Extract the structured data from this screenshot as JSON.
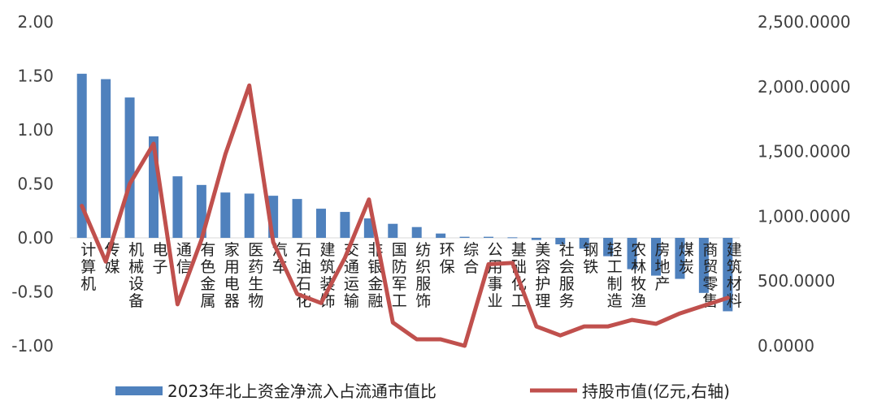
{
  "chart_data": {
    "type": "bar+line",
    "categories": [
      "计算机",
      "传媒",
      "机械设备",
      "电子",
      "通信",
      "有色金属",
      "家用电器",
      "医药生物",
      "汽车",
      "石油石化",
      "建筑装饰",
      "交通运输",
      "非银金融",
      "国防军工",
      "纺织服饰",
      "环保",
      "综合",
      "公用事业",
      "基础化工",
      "美容护理",
      "社会服务",
      "钢铁",
      "轻工制造",
      "农林牧渔",
      "房地产",
      "煤炭",
      "商贸零售",
      "建筑材料"
    ],
    "series": [
      {
        "name": "2023年北上资金净流入占流通市值比",
        "type": "bar",
        "axis": "left",
        "color": "#4F81BD",
        "values": [
          1.52,
          1.47,
          1.3,
          0.94,
          0.57,
          0.49,
          0.42,
          0.41,
          0.39,
          0.36,
          0.27,
          0.24,
          0.18,
          0.13,
          0.1,
          0.04,
          0.01,
          0.01,
          0.005,
          -0.02,
          -0.06,
          -0.1,
          -0.17,
          -0.29,
          -0.35,
          -0.38,
          -0.51,
          -0.68
        ]
      },
      {
        "name": "持股市值(亿元,右轴)",
        "type": "line",
        "axis": "right",
        "color": "#C0504D",
        "values": [
          1080,
          650,
          1250,
          1560,
          320,
          820,
          1480,
          2010,
          800,
          400,
          330,
          680,
          1130,
          180,
          50,
          50,
          0,
          630,
          640,
          150,
          80,
          150,
          150,
          200,
          170,
          250,
          310,
          370
        ]
      }
    ],
    "left_axis": {
      "min": -1.0,
      "max": 2.0,
      "step": 0.5,
      "tick_labels": [
        "2.00",
        "1.50",
        "1.00",
        "0.50",
        "0.00",
        "-0.50",
        "-1.00"
      ]
    },
    "right_axis": {
      "min": 0,
      "max": 2500,
      "step": 500,
      "tick_labels": [
        "2,500.0000",
        "2,000.0000",
        "1,500.0000",
        "1,000.0000",
        "500.0000",
        "0.0000"
      ]
    },
    "grid": false,
    "legend_position": "bottom"
  }
}
